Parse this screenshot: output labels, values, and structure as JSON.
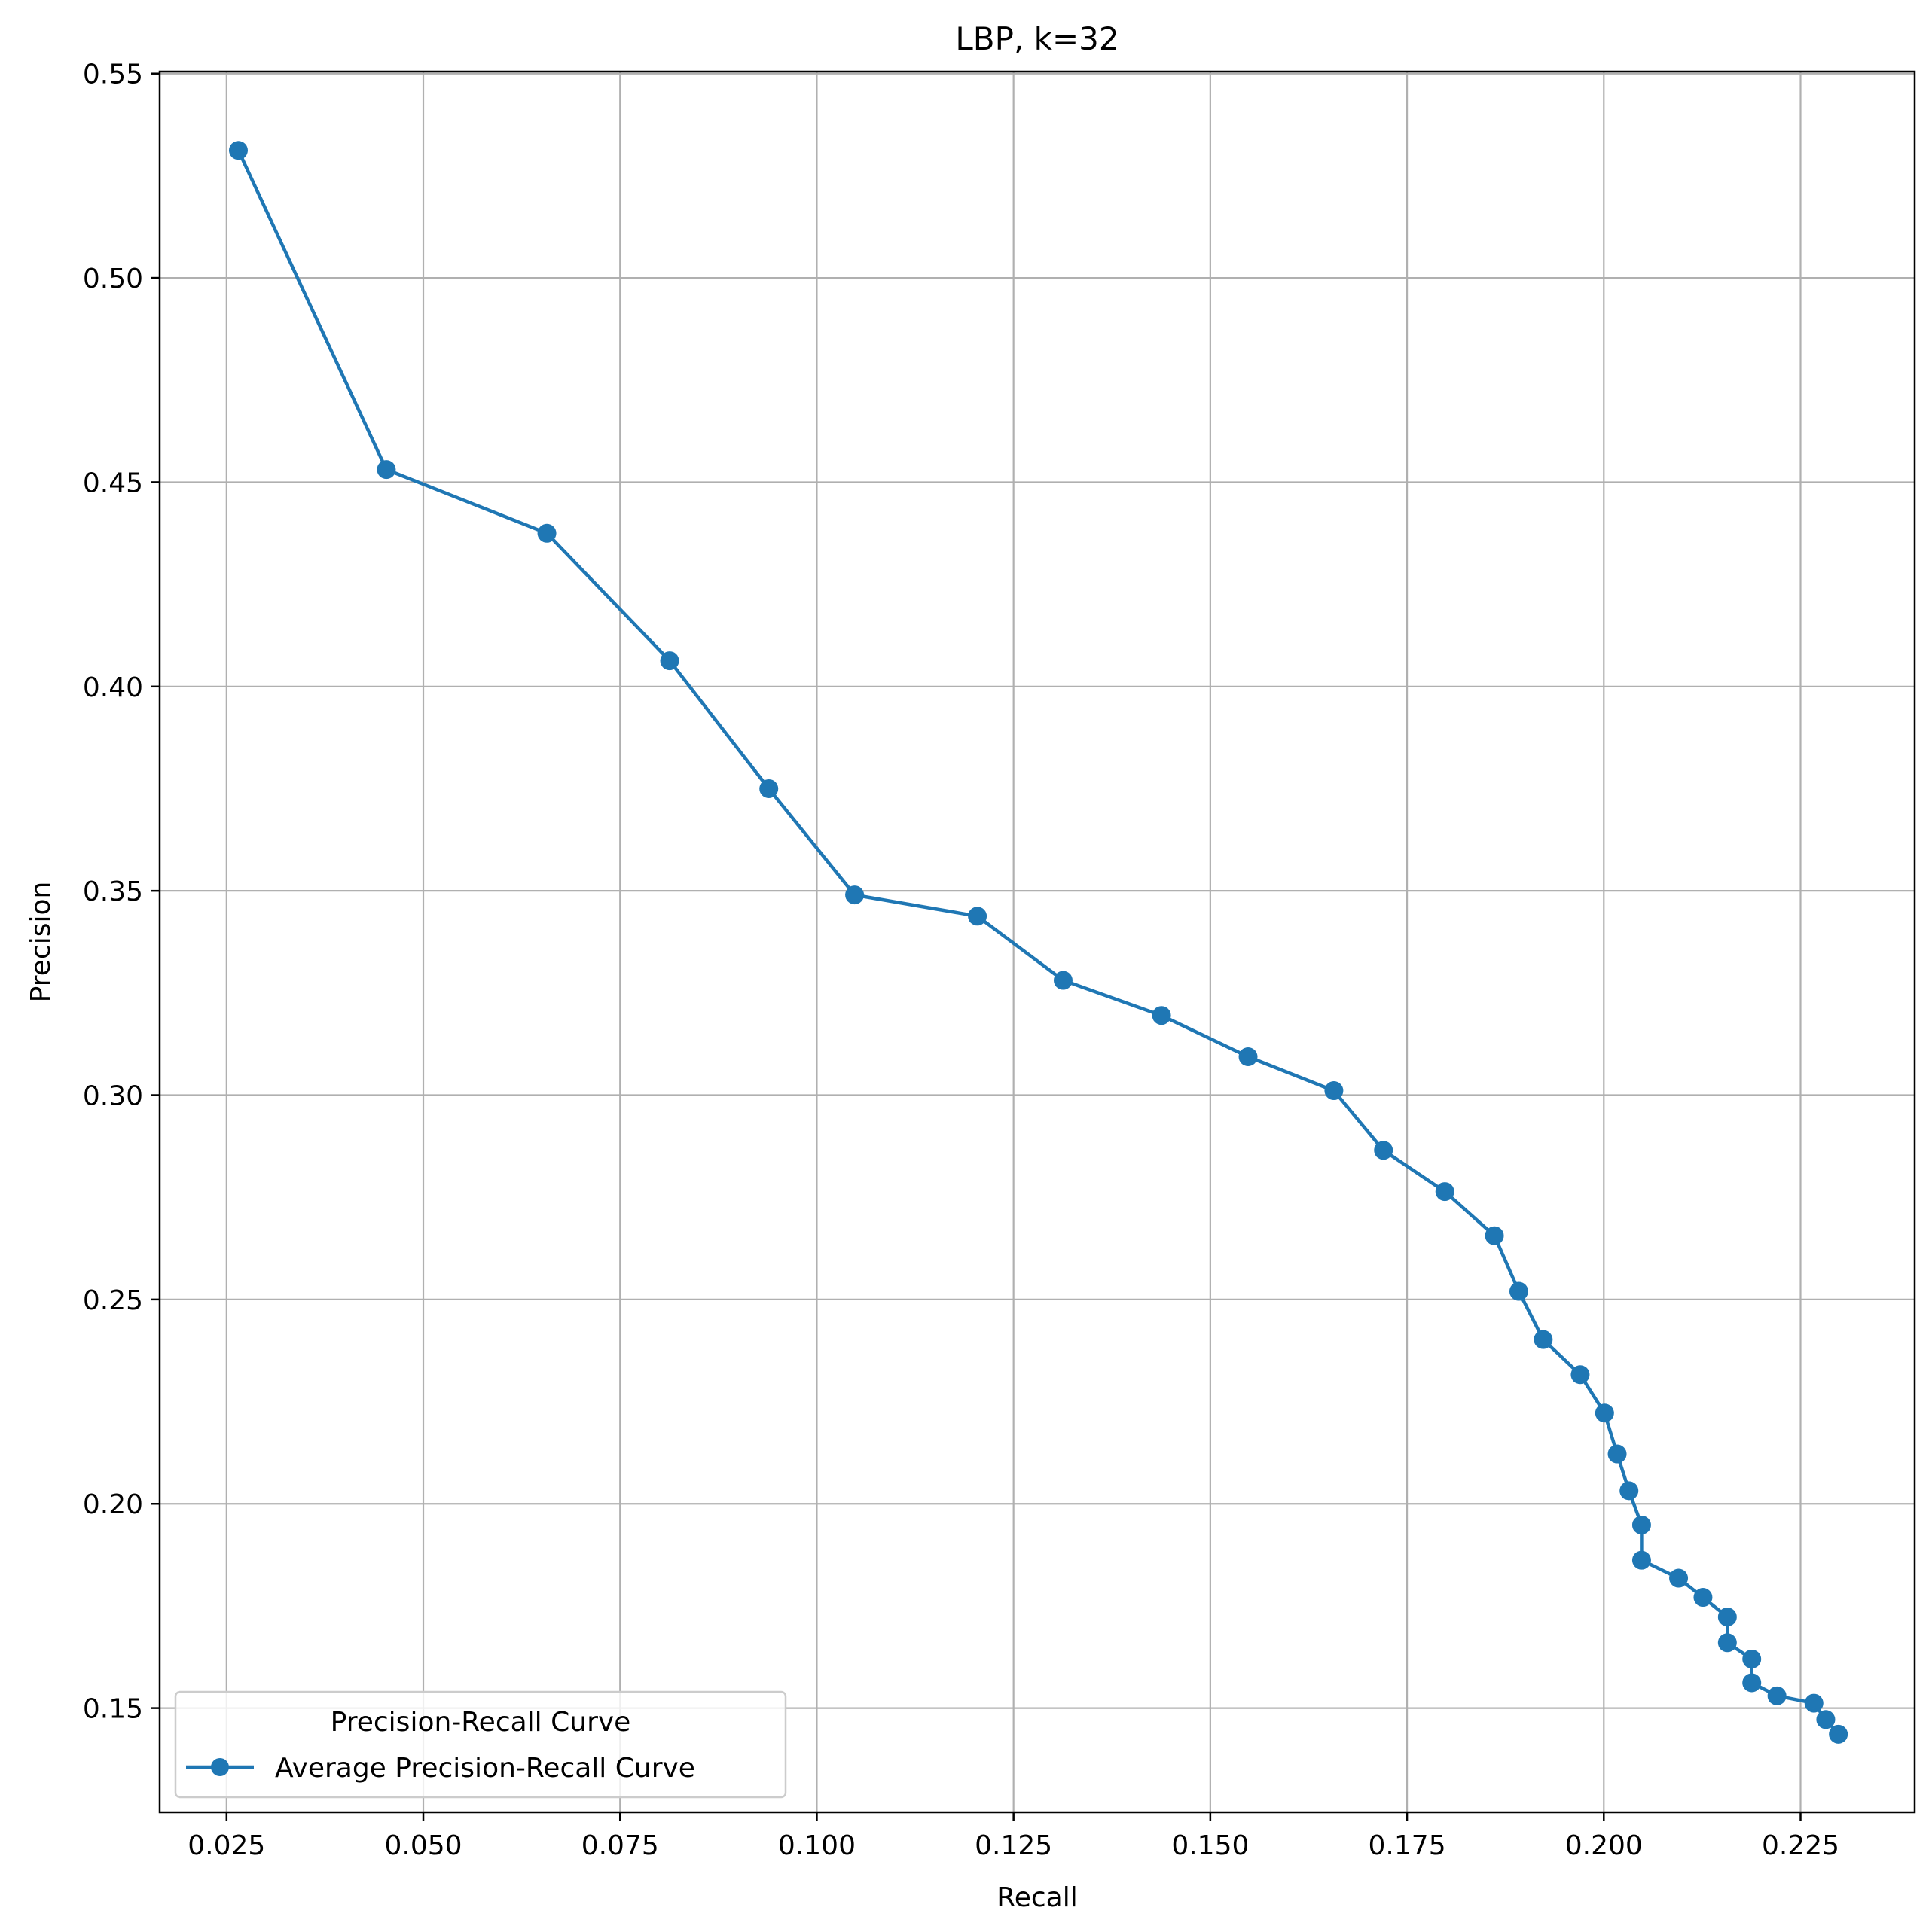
{
  "chart_data": {
    "type": "line",
    "title": "LBP, k=32",
    "xlabel": "Recall",
    "ylabel": "Precision",
    "xlim": [
      0.0165,
      0.2395
    ],
    "ylim": [
      0.1245,
      0.5505
    ],
    "xticks": [
      "0.025",
      "0.050",
      "0.075",
      "0.100",
      "0.125",
      "0.150",
      "0.175",
      "0.200",
      "0.225"
    ],
    "yticks": [
      "0.15",
      "0.20",
      "0.25",
      "0.30",
      "0.35",
      "0.40",
      "0.45",
      "0.50",
      "0.55"
    ],
    "grid": true,
    "legend": {
      "title": "Precision-Recall Curve",
      "placement": "lower-left",
      "entries": [
        "Average  Precision-Recall Curve"
      ]
    },
    "series": [
      {
        "name": "Average  Precision-Recall Curve",
        "color": "#1f77b4",
        "marker": "circle",
        "x": [
          0.0265,
          0.0453,
          0.0657,
          0.0813,
          0.0939,
          0.1048,
          0.1204,
          0.1313,
          0.1438,
          0.1548,
          0.1657,
          0.172,
          0.1798,
          0.1861,
          0.1892,
          0.1923,
          0.197,
          0.2001,
          0.2017,
          0.2032,
          0.2048,
          0.2048,
          0.2095,
          0.2126,
          0.2157,
          0.2157,
          0.2188,
          0.2188,
          0.222,
          0.2267,
          0.2282,
          0.2298
        ],
        "y": [
          0.5312,
          0.4531,
          0.4375,
          0.4063,
          0.375,
          0.349,
          0.3438,
          0.3281,
          0.3195,
          0.3094,
          0.3011,
          0.2865,
          0.2764,
          0.2656,
          0.252,
          0.2402,
          0.2316,
          0.2222,
          0.2122,
          0.2032,
          0.1948,
          0.1862,
          0.1818,
          0.1771,
          0.1723,
          0.166,
          0.162,
          0.1562,
          0.153,
          0.1512,
          0.1472,
          0.1436
        ]
      }
    ]
  }
}
